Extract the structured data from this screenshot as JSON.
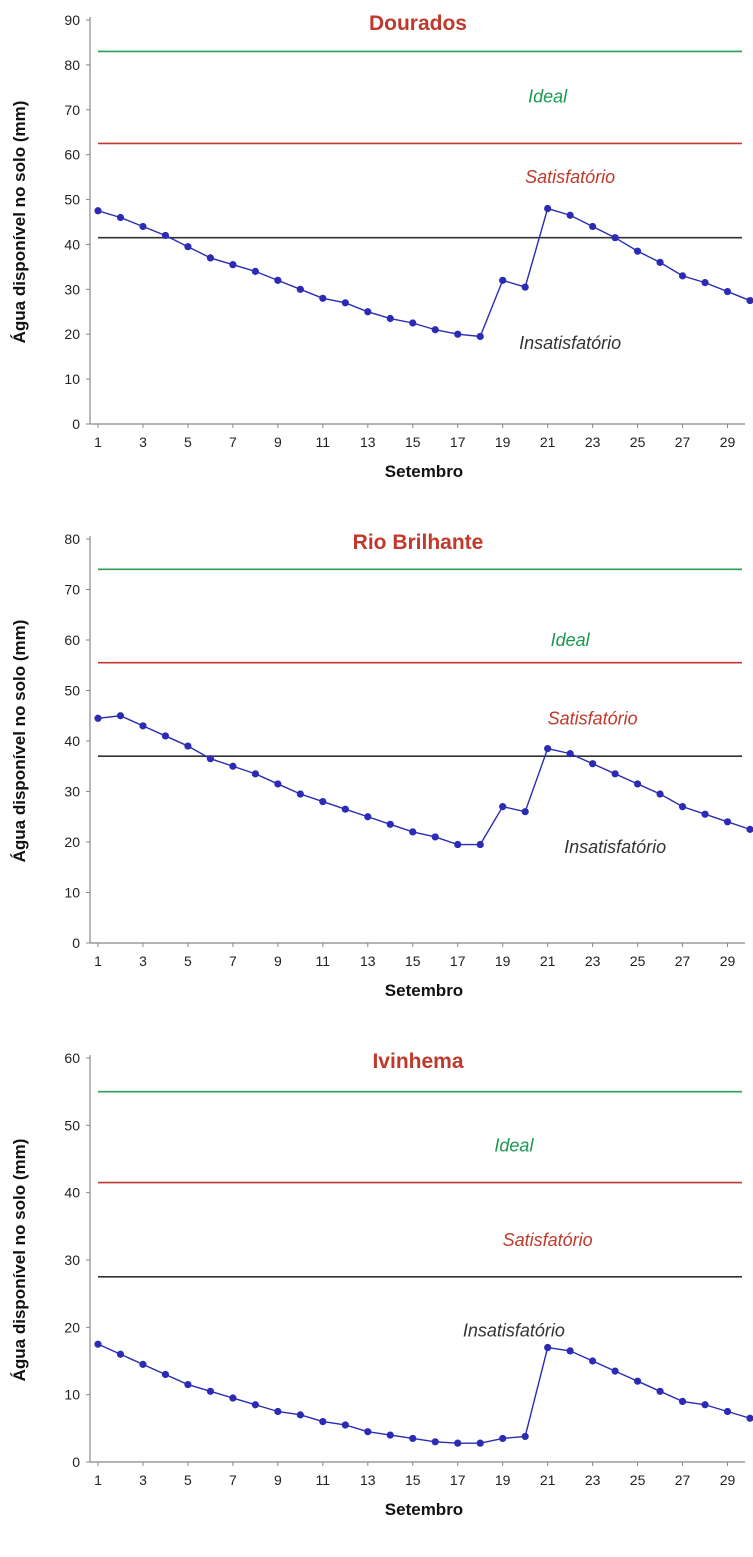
{
  "chart_data": [
    {
      "type": "line",
      "title": "Dourados",
      "xlabel": "Setembro",
      "ylabel": "Água disponível no solo (mm)",
      "xlim": [
        1,
        30
      ],
      "ylim": [
        0,
        90
      ],
      "yticks": [
        0,
        10,
        20,
        30,
        40,
        50,
        60,
        70,
        80,
        90
      ],
      "xticks": [
        1,
        3,
        5,
        7,
        9,
        11,
        13,
        15,
        17,
        19,
        21,
        23,
        25,
        27,
        29
      ],
      "series": [
        {
          "color": "#2b2bb5",
          "x": [
            1,
            2,
            3,
            4,
            5,
            6,
            7,
            8,
            9,
            10,
            11,
            12,
            13,
            14,
            15,
            16,
            17,
            18,
            19,
            20,
            21,
            22,
            23,
            24,
            25,
            26,
            27,
            28,
            29,
            30
          ],
          "values": [
            47.5,
            46,
            44,
            42,
            39.5,
            37,
            35.5,
            34,
            32,
            30,
            28,
            27,
            25,
            23.5,
            22.5,
            21,
            20,
            19.5,
            32,
            30.5,
            48,
            46.5,
            44,
            41.5,
            38.5,
            36,
            33,
            31.5,
            29.5,
            27.5
          ]
        }
      ],
      "reference_lines": [
        {
          "value": 83,
          "color": "#2a9d57"
        },
        {
          "value": 62.5,
          "color": "#c0392b"
        },
        {
          "value": 41.5,
          "color": "#333333"
        }
      ],
      "zone_labels": [
        {
          "text": "Ideal",
          "color": "#1a9a50",
          "x": 21,
          "y": 73
        },
        {
          "text": "Satisfatório",
          "color": "#c0392b",
          "x": 22,
          "y": 55
        },
        {
          "text": "Insatisfatório",
          "color": "#333333",
          "x": 22,
          "y": 18
        }
      ],
      "title_color": "#c0392b"
    },
    {
      "type": "line",
      "title": "Rio Brilhante",
      "xlabel": "Setembro",
      "ylabel": "Água disponível no solo (mm)",
      "xlim": [
        1,
        30
      ],
      "ylim": [
        0,
        80
      ],
      "yticks": [
        0,
        10,
        20,
        30,
        40,
        50,
        60,
        70,
        80
      ],
      "xticks": [
        1,
        3,
        5,
        7,
        9,
        11,
        13,
        15,
        17,
        19,
        21,
        23,
        25,
        27,
        29
      ],
      "series": [
        {
          "color": "#2b2bb5",
          "x": [
            1,
            2,
            3,
            4,
            5,
            6,
            7,
            8,
            9,
            10,
            11,
            12,
            13,
            14,
            15,
            16,
            17,
            18,
            19,
            20,
            21,
            22,
            23,
            24,
            25,
            26,
            27,
            28,
            29,
            30
          ],
          "values": [
            44.5,
            45,
            43,
            41,
            39,
            36.5,
            35,
            33.5,
            31.5,
            29.5,
            28,
            26.5,
            25,
            23.5,
            22,
            21,
            19.5,
            19.5,
            27,
            26,
            38.5,
            37.5,
            35.5,
            33.5,
            31.5,
            29.5,
            27,
            25.5,
            24,
            22.5
          ]
        }
      ],
      "reference_lines": [
        {
          "value": 74,
          "color": "#2a9d57"
        },
        {
          "value": 55.5,
          "color": "#c0392b"
        },
        {
          "value": 37,
          "color": "#333333"
        }
      ],
      "zone_labels": [
        {
          "text": "Ideal",
          "color": "#1a9a50",
          "x": 22,
          "y": 60
        },
        {
          "text": "Satisfatório",
          "color": "#c0392b",
          "x": 23,
          "y": 44.5
        },
        {
          "text": "Insatisfatório",
          "color": "#333333",
          "x": 24,
          "y": 19
        }
      ],
      "title_color": "#c0392b"
    },
    {
      "type": "line",
      "title": "Ivinhema",
      "xlabel": "Setembro",
      "ylabel": "Água disponível no solo (mm)",
      "xlim": [
        1,
        30
      ],
      "ylim": [
        0,
        60
      ],
      "yticks": [
        0,
        10,
        20,
        30,
        40,
        50,
        60
      ],
      "xticks": [
        1,
        3,
        5,
        7,
        9,
        11,
        13,
        15,
        17,
        19,
        21,
        23,
        25,
        27,
        29
      ],
      "series": [
        {
          "color": "#2b2bb5",
          "x": [
            1,
            2,
            3,
            4,
            5,
            6,
            7,
            8,
            9,
            10,
            11,
            12,
            13,
            14,
            15,
            16,
            17,
            18,
            19,
            20,
            21,
            22,
            23,
            24,
            25,
            26,
            27,
            28,
            29,
            30
          ],
          "values": [
            17.5,
            16,
            14.5,
            13,
            11.5,
            10.5,
            9.5,
            8.5,
            7.5,
            7,
            6,
            5.5,
            4.5,
            4,
            3.5,
            3,
            2.8,
            2.8,
            3.5,
            3.8,
            17,
            16.5,
            15,
            13.5,
            12,
            10.5,
            9,
            8.5,
            7.5,
            6.5
          ]
        }
      ],
      "reference_lines": [
        {
          "value": 55,
          "color": "#2a9d57"
        },
        {
          "value": 41.5,
          "color": "#c0392b"
        },
        {
          "value": 27.5,
          "color": "#333333"
        }
      ],
      "zone_labels": [
        {
          "text": "Ideal",
          "color": "#1a9a50",
          "x": 19.5,
          "y": 47
        },
        {
          "text": "Satisfatório",
          "color": "#c0392b",
          "x": 21,
          "y": 33
        },
        {
          "text": "Insatisfatório",
          "color": "#333333",
          "x": 19.5,
          "y": 19.5
        }
      ],
      "title_color": "#c0392b"
    }
  ]
}
